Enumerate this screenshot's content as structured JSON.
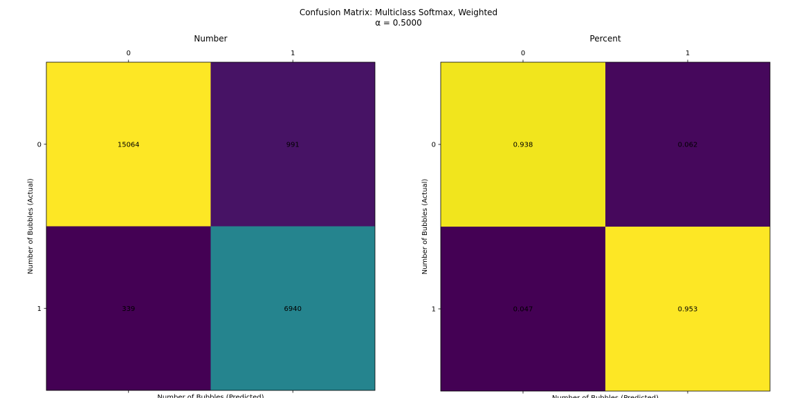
{
  "figure": {
    "title_line1": "Confusion Matrix: Multiclass Softmax, Weighted",
    "title_line2": "α = 0.5000"
  },
  "chart_data": [
    {
      "type": "heatmap",
      "title": "Number",
      "xlabel": "Number of Bubbles (Predicted)",
      "ylabel": "Number of Bubbles (Actual)",
      "x_categories": [
        "0",
        "1"
      ],
      "y_categories": [
        "0",
        "1"
      ],
      "x_tick_position": "top",
      "colormap": "viridis",
      "values": [
        [
          15064,
          991
        ],
        [
          339,
          6940
        ]
      ],
      "value_labels": [
        [
          "15064",
          "991"
        ],
        [
          "339",
          "6940"
        ]
      ],
      "cell_colors": [
        [
          "#fde725",
          "#471365"
        ],
        [
          "#440154",
          "#25848e"
        ]
      ],
      "grid": false
    },
    {
      "type": "heatmap",
      "title": "Percent",
      "xlabel": "Number of Bubbles (Predicted)",
      "ylabel": "Number of Bubbles (Actual)",
      "x_categories": [
        "0",
        "1"
      ],
      "y_categories": [
        "0",
        "1"
      ],
      "x_tick_position": "top",
      "colormap": "viridis",
      "values": [
        [
          0.938,
          0.062
        ],
        [
          0.047,
          0.953
        ]
      ],
      "value_labels": [
        [
          "0.938",
          "0.062"
        ],
        [
          "0.047",
          "0.953"
        ]
      ],
      "cell_colors": [
        [
          "#f1e51d",
          "#46085c"
        ],
        [
          "#440154",
          "#fde725"
        ]
      ],
      "grid": false
    }
  ]
}
